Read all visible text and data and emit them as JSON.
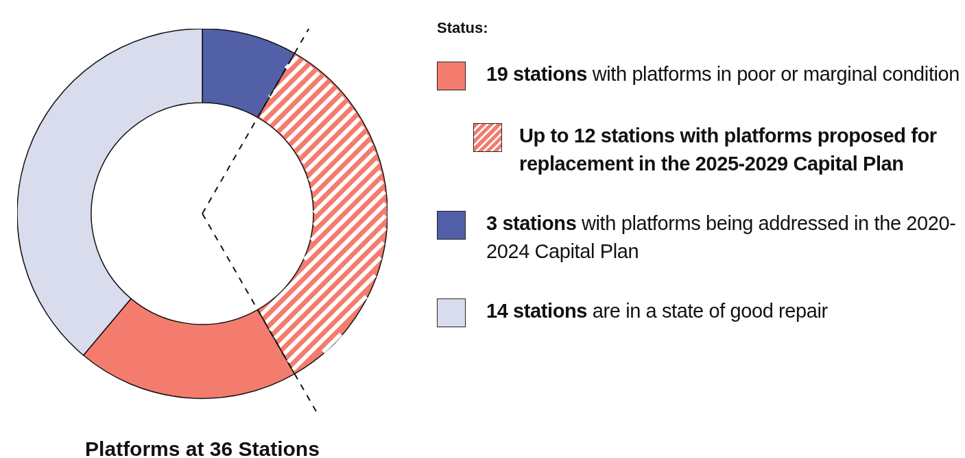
{
  "chart_data": {
    "type": "donut",
    "title": "Platforms at 36 Stations",
    "legend_title": "Status:",
    "legend": "right",
    "categories": [
      "19 stations with platforms in poor or marginal condition",
      "Up to 12 stations with platforms proposed for replacement in the 2025-2029 Capital Plan",
      "3 stations with platforms being addressed in the 2020-2024 Capital Plan",
      "14 stations are in a state of good repair"
    ],
    "values": [
      19.4,
      33.4,
      8.3,
      38.9
    ],
    "colors": [
      "#f47c6e",
      "#f47c6e",
      "#5260a8",
      "#d8dcec"
    ]
  }
}
